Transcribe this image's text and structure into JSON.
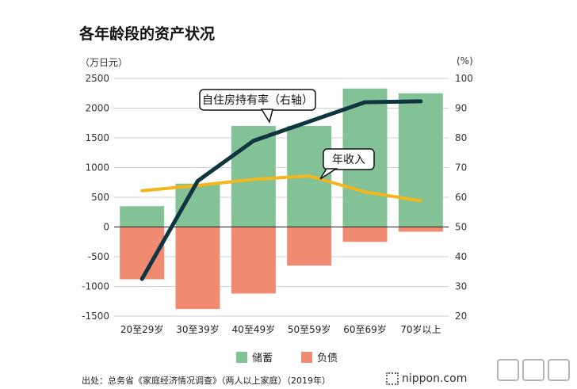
{
  "title": "各年龄段的资产状况",
  "units": {
    "left": "（万日元）",
    "right": "(%)"
  },
  "chart_data": {
    "type": "bar",
    "categories": [
      "20至29岁",
      "30至39岁",
      "40至49岁",
      "50至59岁",
      "60至69岁",
      "70岁以上"
    ],
    "series": [
      {
        "name": "储蓄",
        "kind": "bar",
        "color": "#83c197",
        "values": [
          350,
          730,
          1700,
          1700,
          2330,
          2250
        ]
      },
      {
        "name": "负债",
        "kind": "bar",
        "color": "#f08a70",
        "values": [
          -880,
          -1380,
          -1120,
          -650,
          -250,
          -80
        ]
      },
      {
        "name": "自住房持有率（右轴",
        "kind": "line",
        "axis": "right",
        "color": "#0e3540",
        "values": [
          32.5,
          65.5,
          79,
          85.5,
          92,
          92.3
        ]
      },
      {
        "name": "年收入",
        "kind": "line",
        "axis": "left",
        "color": "#f2b61c",
        "values": [
          610,
          700,
          800,
          860,
          590,
          440
        ]
      }
    ],
    "y_left": {
      "min": -1500,
      "max": 2500,
      "ticks": [
        "2500",
        "2000",
        "1500",
        "1000",
        "500",
        "0",
        "-500",
        "-1000",
        "-1500"
      ]
    },
    "y_right": {
      "min": 20,
      "max": 100,
      "ticks": [
        "100",
        "90",
        "80",
        "70",
        "60",
        "50",
        "40",
        "30",
        "20"
      ]
    },
    "grid": true,
    "annotations": [
      {
        "text": "自住房持有率（右轴）",
        "series_index": 2
      },
      {
        "text": "年收入",
        "series_index": 3
      }
    ]
  },
  "legend": [
    {
      "label": "储蓄",
      "color": "#83c197"
    },
    {
      "label": "负债",
      "color": "#f08a70"
    }
  ],
  "source": "出处：总务省《家庭经济情况调查》（两人以上家庭）（2019年）",
  "brand": "nippon.com",
  "watermark_icon": "logo-watermark-icon"
}
